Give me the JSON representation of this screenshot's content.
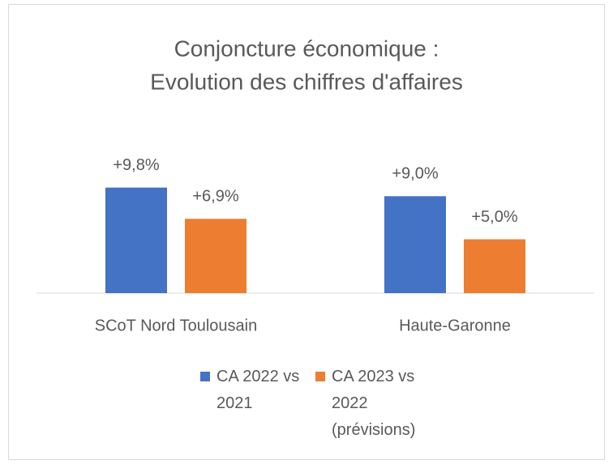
{
  "chart_data": {
    "type": "bar",
    "title": [
      "Conjoncture économique :",
      "Evolution des chiffres d'affaires"
    ],
    "categories": [
      "SCoT Nord Toulousain",
      "Haute-Garonne"
    ],
    "series": [
      {
        "name": "CA 2022 vs 2021",
        "color": "#4472c4",
        "values": [
          9.8,
          9.0
        ],
        "value_labels": [
          "+9,8%",
          "+9,0%"
        ]
      },
      {
        "name": "CA 2023 vs 2022 (prévisions)",
        "color": "#ed7d31",
        "values": [
          6.9,
          5.0
        ],
        "value_labels": [
          "+6,9%",
          "+5,0%"
        ]
      }
    ],
    "ylim": [
      0,
      10
    ],
    "grid": false,
    "legend": "bottom"
  }
}
